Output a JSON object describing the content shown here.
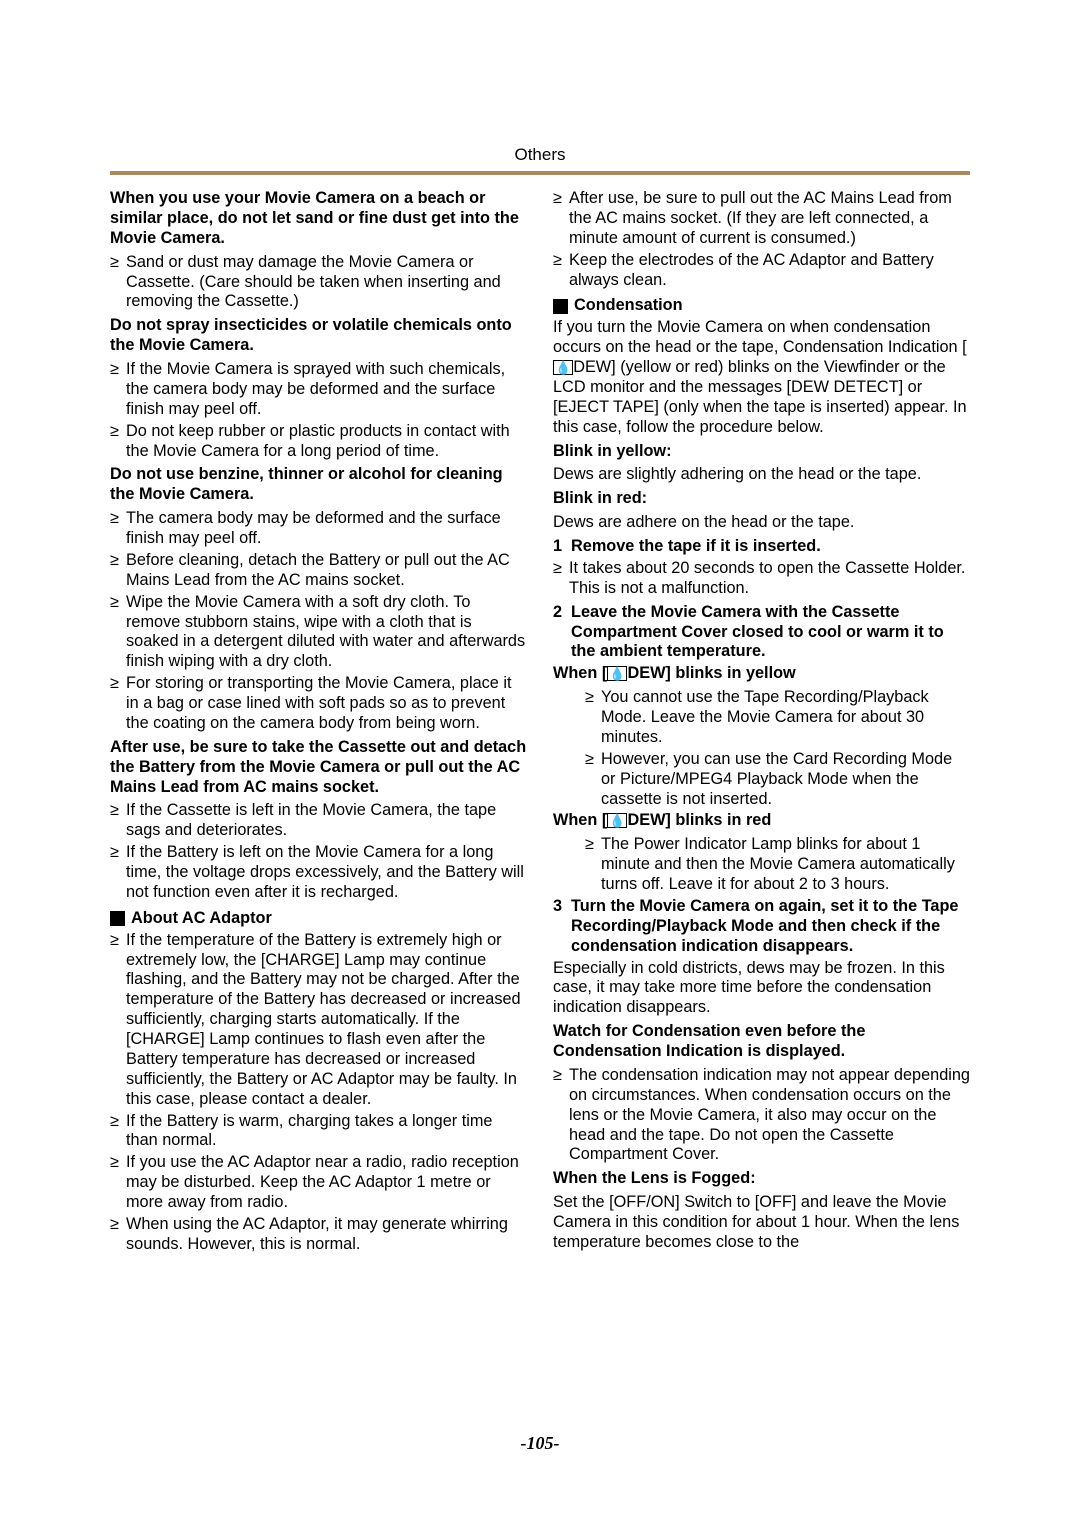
{
  "header": "Others",
  "pageNumber": "-105-",
  "left": {
    "p1": "When you use your Movie Camera on a beach or similar place, do not let sand or fine dust get into the Movie Camera.",
    "b1": "Sand or dust may damage the Movie Camera or Cassette. (Care should be taken when inserting and removing the Cassette.)",
    "p2": "Do not spray insecticides or volatile chemicals onto the Movie Camera.",
    "b2a": "If the Movie Camera is sprayed with such chemicals, the camera body may be deformed and the surface finish may peel off.",
    "b2b": "Do not keep rubber or plastic products in contact with the Movie Camera for a long period of time.",
    "p3": "Do not use benzine, thinner or alcohol for cleaning the Movie Camera.",
    "b3a": "The camera body may be deformed and the surface finish may peel off.",
    "b3b": "Before cleaning, detach the Battery or pull out the AC Mains Lead from the AC mains socket.",
    "b3c": "Wipe the Movie Camera with a soft dry cloth. To remove stubborn stains, wipe with a cloth that is soaked in a detergent diluted with water and afterwards finish wiping with a dry cloth.",
    "b3d": "For storing or transporting the Movie Camera, place it in a bag or case lined with soft pads so as to prevent the coating on the camera body from being worn.",
    "p4": "After use, be sure to take the Cassette out and detach the Battery from the Movie Camera or pull out the AC Mains Lead from AC mains socket.",
    "b4a": "If the Cassette is left in the Movie Camera, the tape sags and deteriorates.",
    "b4b": "If the Battery is left on the Movie Camera for a long time, the voltage drops excessively, and the Battery will not function even after it is recharged.",
    "secAC": "About AC Adaptor",
    "ac1": "If the temperature of the Battery is extremely high or extremely low, the [CHARGE] Lamp may continue flashing, and the Battery may not be charged. After the temperature of the Battery has decreased or increased sufficiently, charging starts automatically. If the [CHARGE] Lamp continues to flash even after the Battery temperature has decreased or increased sufficiently, the Battery or AC Adaptor may be faulty. In this case, please contact a dealer.",
    "ac2": "If the Battery is warm, charging takes a longer time than normal.",
    "ac3": "If you use the AC Adaptor near a radio, radio reception may be disturbed. Keep the AC Adaptor 1 metre or more away from radio.",
    "ac4": "When using the AC Adaptor, it may generate whirring sounds. However, this is normal."
  },
  "right": {
    "b1": "After use, be sure to pull out the AC Mains Lead from the AC mains socket. (If they are left connected, a minute amount of current is consumed.)",
    "b2": "Keep the electrodes of the AC Adaptor and Battery always clean.",
    "secCond": "Condensation",
    "condIntroA": "If you turn the Movie Camera on when condensation occurs on the head or the tape, Condensation Indication [",
    "condIntroB": "DEW] (yellow or red) blinks on the Viewfinder or the LCD monitor and the messages [DEW DETECT] or [EJECT TAPE] (only when the tape is inserted) appear. In this case, follow the procedure below.",
    "blinkYellow": "Blink in yellow:",
    "blinkYellowText": "Dews are slightly adhering on the head or the tape.",
    "blinkRed": "Blink in red:",
    "blinkRedText": "Dews are adhere on the head or the tape.",
    "n1": "Remove the tape if it is inserted.",
    "n1b": "It takes about 20 seconds to open the Cassette Holder. This is not a malfunction.",
    "n2": "Leave the Movie Camera with the Cassette Compartment Cover closed to cool or warm it to the ambient temperature.",
    "whenYellowA": "When [",
    "whenYellowB": "DEW] blinks in yellow",
    "wy1": "You cannot use the Tape Recording/Playback Mode. Leave the Movie Camera for about 30 minutes.",
    "wy2": "However, you can use the Card Recording Mode or Picture/MPEG4 Playback Mode when the cassette is not inserted.",
    "whenRedA": "When [",
    "whenRedB": "DEW] blinks in red",
    "wr1": "The Power Indicator Lamp blinks for about 1 minute and then the Movie Camera automatically turns off. Leave it for about 2 to 3 hours.",
    "n3": "Turn the Movie Camera on again, set it to the Tape Recording/Playback Mode and then check if the condensation indication disappears.",
    "esp": "Especially in cold districts, dews may be frozen. In this case, it may take more time before the condensation indication disappears.",
    "watch": "Watch for Condensation even before the Condensation Indication is displayed.",
    "watchB": "The condensation indication may not appear depending on circumstances. When condensation occurs on the lens or the Movie Camera, it also may occur on the head and the tape. Do not open the Cassette Compartment Cover.",
    "lensFog": "When the Lens is Fogged:",
    "lensFogText": "Set the [OFF/ON] Switch to [OFF] and leave the Movie Camera in this condition for about 1 hour. When the lens temperature becomes close to the"
  }
}
